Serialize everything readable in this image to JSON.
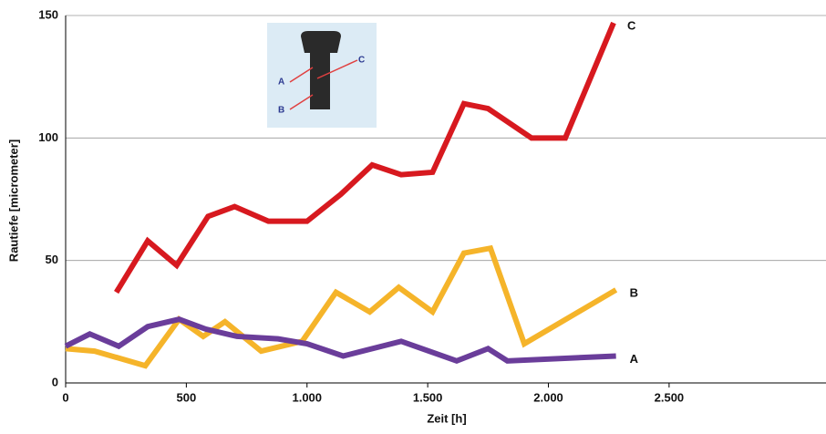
{
  "chart_data": {
    "type": "line",
    "x_label": "Zeit [h]",
    "y_label": "Rautiefe [micrometer]",
    "xlim": [
      0,
      3150
    ],
    "ylim": [
      0,
      150
    ],
    "xticks": [
      0,
      500,
      {
        "value": 1000,
        "label": "1.000"
      },
      {
        "value": 1500,
        "label": "1.500"
      },
      {
        "value": 2000,
        "label": "2.000"
      },
      {
        "value": 2500,
        "label": "2.500"
      }
    ],
    "yticks": [
      0,
      50,
      100,
      150
    ],
    "grid": true,
    "series": [
      {
        "name": "C",
        "color": "#d7191f",
        "x": [
          210,
          340,
          460,
          590,
          700,
          840,
          1000,
          1140,
          1270,
          1390,
          1520,
          1650,
          1750,
          1930,
          2070,
          2270
        ],
        "values": [
          37,
          58,
          48,
          68,
          72,
          66,
          66,
          77,
          89,
          85,
          86,
          114,
          112,
          100,
          100,
          147
        ]
      },
      {
        "name": "B",
        "color": "#f5b42a",
        "x": [
          0,
          120,
          330,
          470,
          570,
          660,
          810,
          980,
          1120,
          1260,
          1380,
          1520,
          1650,
          1760,
          1900,
          2280
        ],
        "values": [
          14,
          13,
          7,
          26,
          19,
          25,
          13,
          17,
          37,
          29,
          39,
          29,
          53,
          55,
          16,
          38
        ]
      },
      {
        "name": "A",
        "color": "#6a3d9a",
        "x": [
          0,
          100,
          220,
          340,
          470,
          580,
          710,
          880,
          1000,
          1150,
          1390,
          1620,
          1750,
          1830,
          2280
        ],
        "values": [
          15,
          20,
          15,
          23,
          26,
          22,
          19,
          18,
          16,
          11,
          17,
          9,
          14,
          9,
          11
        ]
      }
    ]
  }
}
